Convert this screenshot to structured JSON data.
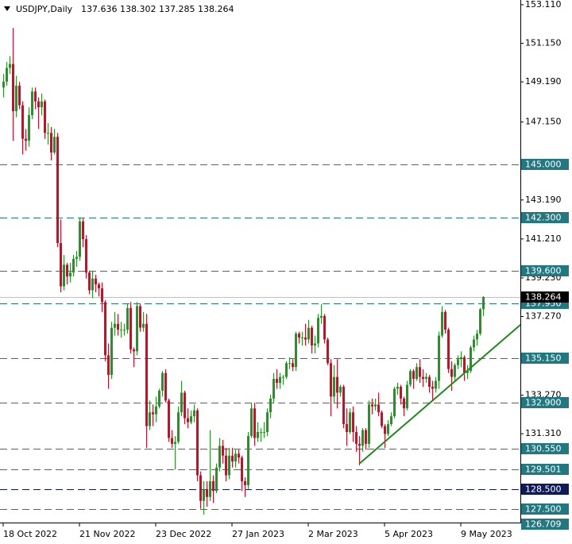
{
  "chart_data": {
    "type": "candlestick",
    "symbol": "USDJPY,Daily",
    "header_ohlc": [
      137.636,
      138.302,
      137.285,
      138.264
    ],
    "categories": [
      "18 Oct 2022",
      null,
      null,
      null,
      null,
      null,
      null,
      null,
      null,
      null,
      null,
      null,
      null,
      null,
      null,
      null,
      null,
      null,
      null,
      null,
      null,
      null,
      null,
      null,
      "21 Nov 2022",
      null,
      null,
      null,
      null,
      null,
      null,
      null,
      null,
      null,
      null,
      null,
      null,
      null,
      null,
      null,
      null,
      null,
      null,
      null,
      null,
      null,
      null,
      null,
      "23 Dec 2022",
      null,
      null,
      null,
      null,
      null,
      null,
      null,
      null,
      null,
      null,
      null,
      null,
      null,
      null,
      null,
      null,
      null,
      null,
      null,
      null,
      null,
      null,
      null,
      "27 Jan 2023",
      null,
      null,
      null,
      null,
      null,
      null,
      null,
      null,
      null,
      null,
      null,
      null,
      null,
      null,
      null,
      null,
      null,
      null,
      null,
      null,
      null,
      null,
      null,
      "2 Mar 2023",
      null,
      null,
      null,
      null,
      null,
      null,
      null,
      null,
      null,
      null,
      null,
      null,
      null,
      null,
      null,
      null,
      null,
      null,
      null,
      null,
      null,
      null,
      null,
      "5 Apr 2023",
      null,
      null,
      null,
      null,
      null,
      null,
      null,
      null,
      null,
      null,
      null,
      null,
      null,
      null,
      null,
      null,
      null,
      null,
      null,
      null,
      null,
      null,
      null,
      "9 May 2023",
      null,
      null,
      null,
      null,
      null,
      null,
      null
    ],
    "open": [
      148.9,
      149.2,
      149.9,
      150.1,
      147.7,
      149.0,
      148.0,
      146.3,
      146.2,
      147.5,
      148.7,
      148.2,
      147.9,
      148.2,
      146.6,
      146.6,
      145.6,
      146.4,
      141.0,
      138.8,
      139.9,
      139.3,
      139.5,
      140.2,
      140.3,
      142.1,
      141.2,
      139.5,
      138.6,
      139.2,
      138.9,
      138.7,
      138.0,
      135.3,
      134.3,
      136.7,
      136.9,
      136.6,
      136.6,
      136.6,
      137.7,
      135.6,
      135.5,
      137.8,
      136.7,
      136.9,
      131.7,
      132.4,
      132.3,
      132.7,
      133.5,
      134.4,
      133.0,
      131.1,
      130.8,
      130.9,
      132.4,
      133.4,
      132.1,
      131.9,
      132.2,
      132.5,
      129.2,
      127.9,
      128.5,
      128.1,
      128.9,
      128.4,
      129.6,
      130.7,
      130.2,
      129.2,
      130.2,
      129.9,
      130.3,
      130.1,
      128.9,
      128.7,
      131.2,
      132.6,
      131.1,
      131.4,
      131.4,
      131.4,
      132.4,
      133.1,
      134.1,
      133.9,
      134.2,
      134.2,
      134.9,
      134.9,
      134.7,
      136.4,
      136.2,
      136.2,
      136.1,
      136.7,
      135.8,
      135.9,
      137.2,
      137.3,
      136.1,
      134.9,
      133.2,
      134.2,
      133.4,
      133.7,
      131.8,
      131.4,
      132.4,
      131.4,
      130.8,
      130.7,
      131.5,
      130.8,
      132.8,
      132.7,
      132.8,
      132.4,
      131.7,
      131.3,
      131.8,
      132.2,
      133.6,
      133.7,
      133.1,
      132.6,
      133.8,
      134.5,
      134.1,
      134.7,
      134.2,
      134.1,
      134.2,
      133.7,
      133.6,
      134.0,
      136.3,
      137.5,
      136.6,
      134.6,
      134.2,
      134.8,
      135.1,
      135.2,
      134.4,
      134.5,
      135.7,
      136.1,
      136.4,
      137.636
    ],
    "high": [
      149.6,
      150.2,
      150.5,
      151.94,
      149.5,
      149.2,
      148.2,
      146.8,
      147.9,
      148.9,
      148.9,
      148.4,
      148.6,
      148.3,
      147.1,
      146.9,
      146.8,
      146.6,
      142.2,
      140.4,
      140.0,
      140.0,
      140.4,
      140.6,
      142.3,
      142.25,
      141.4,
      139.6,
      139.6,
      139.4,
      139.0,
      139.0,
      138.1,
      135.9,
      137.0,
      137.5,
      137.4,
      137.0,
      136.9,
      137.9,
      138.0,
      135.7,
      138.0,
      137.9,
      137.5,
      137.4,
      133.0,
      132.8,
      133.2,
      133.6,
      134.5,
      134.6,
      133.1,
      131.5,
      131.2,
      132.7,
      134.0,
      133.5,
      132.6,
      132.5,
      132.8,
      132.6,
      129.4,
      128.9,
      128.9,
      131.5,
      129.2,
      129.8,
      131.1,
      131.0,
      130.6,
      130.6,
      130.6,
      130.5,
      130.5,
      130.2,
      129.1,
      131.4,
      132.9,
      132.9,
      131.9,
      131.6,
      131.9,
      132.6,
      133.3,
      134.4,
      134.6,
      134.4,
      134.3,
      135.0,
      135.2,
      135.1,
      136.5,
      136.5,
      136.5,
      136.9,
      137.1,
      136.8,
      136.3,
      137.4,
      137.9,
      137.4,
      136.2,
      135.1,
      134.8,
      135.1,
      133.8,
      133.8,
      132.6,
      132.6,
      132.7,
      131.7,
      131.2,
      131.6,
      131.6,
      133.0,
      133.1,
      133.1,
      133.4,
      132.5,
      131.8,
      132.0,
      132.4,
      133.7,
      133.9,
      133.8,
      133.2,
      134.0,
      134.6,
      134.6,
      134.9,
      135.1,
      134.6,
      134.4,
      134.3,
      134.0,
      134.2,
      136.5,
      137.8,
      137.6,
      136.7,
      135.0,
      134.9,
      135.3,
      135.5,
      135.3,
      134.8,
      135.8,
      136.3,
      136.6,
      137.7,
      138.302
    ],
    "low": [
      148.4,
      149.0,
      149.6,
      146.2,
      147.4,
      147.8,
      145.5,
      145.7,
      145.9,
      147.3,
      147.8,
      146.8,
      147.5,
      146.3,
      146.0,
      145.2,
      145.5,
      140.8,
      138.5,
      138.6,
      138.9,
      139.0,
      139.3,
      139.8,
      140.1,
      140.8,
      139.2,
      138.4,
      138.2,
      138.5,
      138.3,
      137.5,
      135.0,
      133.6,
      134.1,
      136.3,
      136.3,
      136.2,
      136.3,
      136.4,
      135.4,
      134.7,
      135.3,
      136.5,
      136.5,
      130.6,
      131.5,
      131.7,
      131.9,
      132.6,
      133.2,
      132.9,
      130.9,
      130.6,
      129.5,
      130.8,
      132.2,
      131.8,
      131.6,
      131.8,
      131.9,
      128.9,
      127.5,
      127.2,
      127.6,
      127.9,
      127.8,
      128.3,
      129.4,
      129.8,
      128.9,
      129.0,
      129.6,
      129.6,
      129.8,
      128.4,
      128.1,
      128.5,
      131.1,
      130.7,
      130.9,
      130.9,
      131.1,
      131.2,
      132.1,
      132.9,
      133.6,
      133.6,
      133.8,
      134.1,
      134.6,
      134.5,
      134.5,
      135.9,
      135.8,
      135.8,
      135.9,
      135.4,
      135.4,
      135.7,
      136.9,
      135.9,
      134.8,
      132.2,
      132.9,
      132.6,
      133.2,
      131.6,
      130.7,
      131.3,
      130.9,
      130.4,
      129.7,
      130.4,
      130.5,
      130.6,
      132.3,
      132.5,
      132.2,
      131.6,
      130.6,
      131.2,
      131.7,
      132.1,
      133.3,
      132.8,
      132.2,
      132.5,
      133.7,
      133.6,
      134.0,
      133.9,
      133.7,
      133.9,
      133.4,
      133.0,
      133.4,
      133.6,
      136.2,
      136.4,
      134.4,
      133.5,
      134.0,
      134.6,
      134.7,
      134.0,
      134.1,
      134.4,
      135.5,
      135.8,
      136.3,
      137.285
    ],
    "close": [
      149.2,
      149.9,
      150.1,
      147.7,
      149.0,
      148.0,
      146.3,
      146.2,
      147.5,
      148.7,
      148.2,
      147.9,
      148.2,
      146.6,
      146.6,
      145.6,
      146.4,
      141.0,
      138.8,
      139.9,
      139.3,
      139.5,
      140.2,
      140.3,
      142.1,
      141.2,
      139.5,
      138.6,
      139.2,
      138.9,
      138.7,
      138.0,
      135.3,
      134.3,
      136.7,
      136.9,
      136.6,
      136.6,
      136.6,
      137.7,
      135.6,
      135.5,
      137.8,
      136.7,
      136.9,
      131.7,
      132.4,
      132.3,
      132.7,
      133.5,
      134.4,
      133.0,
      131.1,
      130.8,
      130.9,
      132.4,
      133.4,
      132.1,
      131.9,
      132.2,
      132.5,
      129.2,
      127.9,
      128.5,
      128.1,
      128.9,
      128.4,
      129.6,
      130.7,
      130.2,
      129.2,
      130.2,
      129.9,
      130.3,
      130.1,
      128.9,
      128.7,
      131.2,
      132.6,
      131.1,
      131.4,
      131.4,
      131.4,
      132.4,
      133.1,
      134.1,
      133.9,
      134.2,
      134.2,
      134.9,
      134.9,
      134.7,
      136.4,
      136.2,
      136.2,
      136.1,
      136.7,
      135.8,
      135.9,
      137.2,
      137.3,
      136.1,
      134.9,
      133.2,
      134.2,
      133.4,
      133.7,
      131.8,
      131.4,
      132.4,
      131.4,
      130.8,
      130.7,
      131.5,
      130.8,
      132.8,
      132.7,
      132.8,
      132.4,
      131.7,
      131.3,
      131.8,
      132.2,
      133.6,
      133.7,
      133.1,
      132.6,
      133.8,
      134.5,
      134.1,
      134.7,
      134.2,
      134.1,
      134.2,
      133.7,
      133.6,
      134.0,
      136.3,
      137.5,
      136.6,
      134.6,
      134.2,
      134.8,
      135.1,
      135.2,
      134.4,
      134.5,
      135.7,
      136.1,
      136.4,
      137.64,
      138.264
    ],
    "up_color": "#1a9c1a",
    "down_color": "#e8001c",
    "ylim": [
      126.8,
      153.35
    ],
    "yticks": [
      {
        "value": 153.11,
        "label": "153.110"
      },
      {
        "value": 151.15,
        "label": "151.150"
      },
      {
        "value": 149.19,
        "label": "149.190"
      },
      {
        "value": 147.15,
        "label": "147.150"
      },
      {
        "value": 143.19,
        "label": "143.190"
      },
      {
        "value": 141.21,
        "label": "141.210"
      },
      {
        "value": 139.23,
        "label": "139.230"
      },
      {
        "value": 137.27,
        "label": "137.270"
      },
      {
        "value": 133.27,
        "label": "133.270"
      },
      {
        "value": 131.31,
        "label": "131.310"
      }
    ],
    "levels": [
      {
        "value": 145,
        "label": "145.000",
        "color": "#227880"
      },
      {
        "value": 142.3,
        "label": "142.300",
        "color": "#227880"
      },
      {
        "value": 139.6,
        "label": "139.600",
        "color": "#227880"
      },
      {
        "value": 137.95,
        "label": "137.950",
        "color": "#227880"
      },
      {
        "value": 135.15,
        "label": "135.150",
        "color": "#227880"
      },
      {
        "value": 132.9,
        "label": "132.900",
        "color": "#227880"
      },
      {
        "value": 130.55,
        "label": "130.550",
        "color": "#227880"
      },
      {
        "value": 129.501,
        "label": "129.501",
        "color": "#227880"
      },
      {
        "value": 128.5,
        "label": "128.500",
        "color": "#0d1b5a"
      },
      {
        "value": 127.5,
        "label": "127.500",
        "color": "#227880"
      },
      {
        "value": 126.709,
        "label": "126.709",
        "color": "#227880"
      }
    ],
    "current_price": 138.264,
    "trendline": {
      "x": [
        112,
        163
      ],
      "y": [
        129.78,
        136.88
      ],
      "color": "#1a8c1a"
    }
  }
}
